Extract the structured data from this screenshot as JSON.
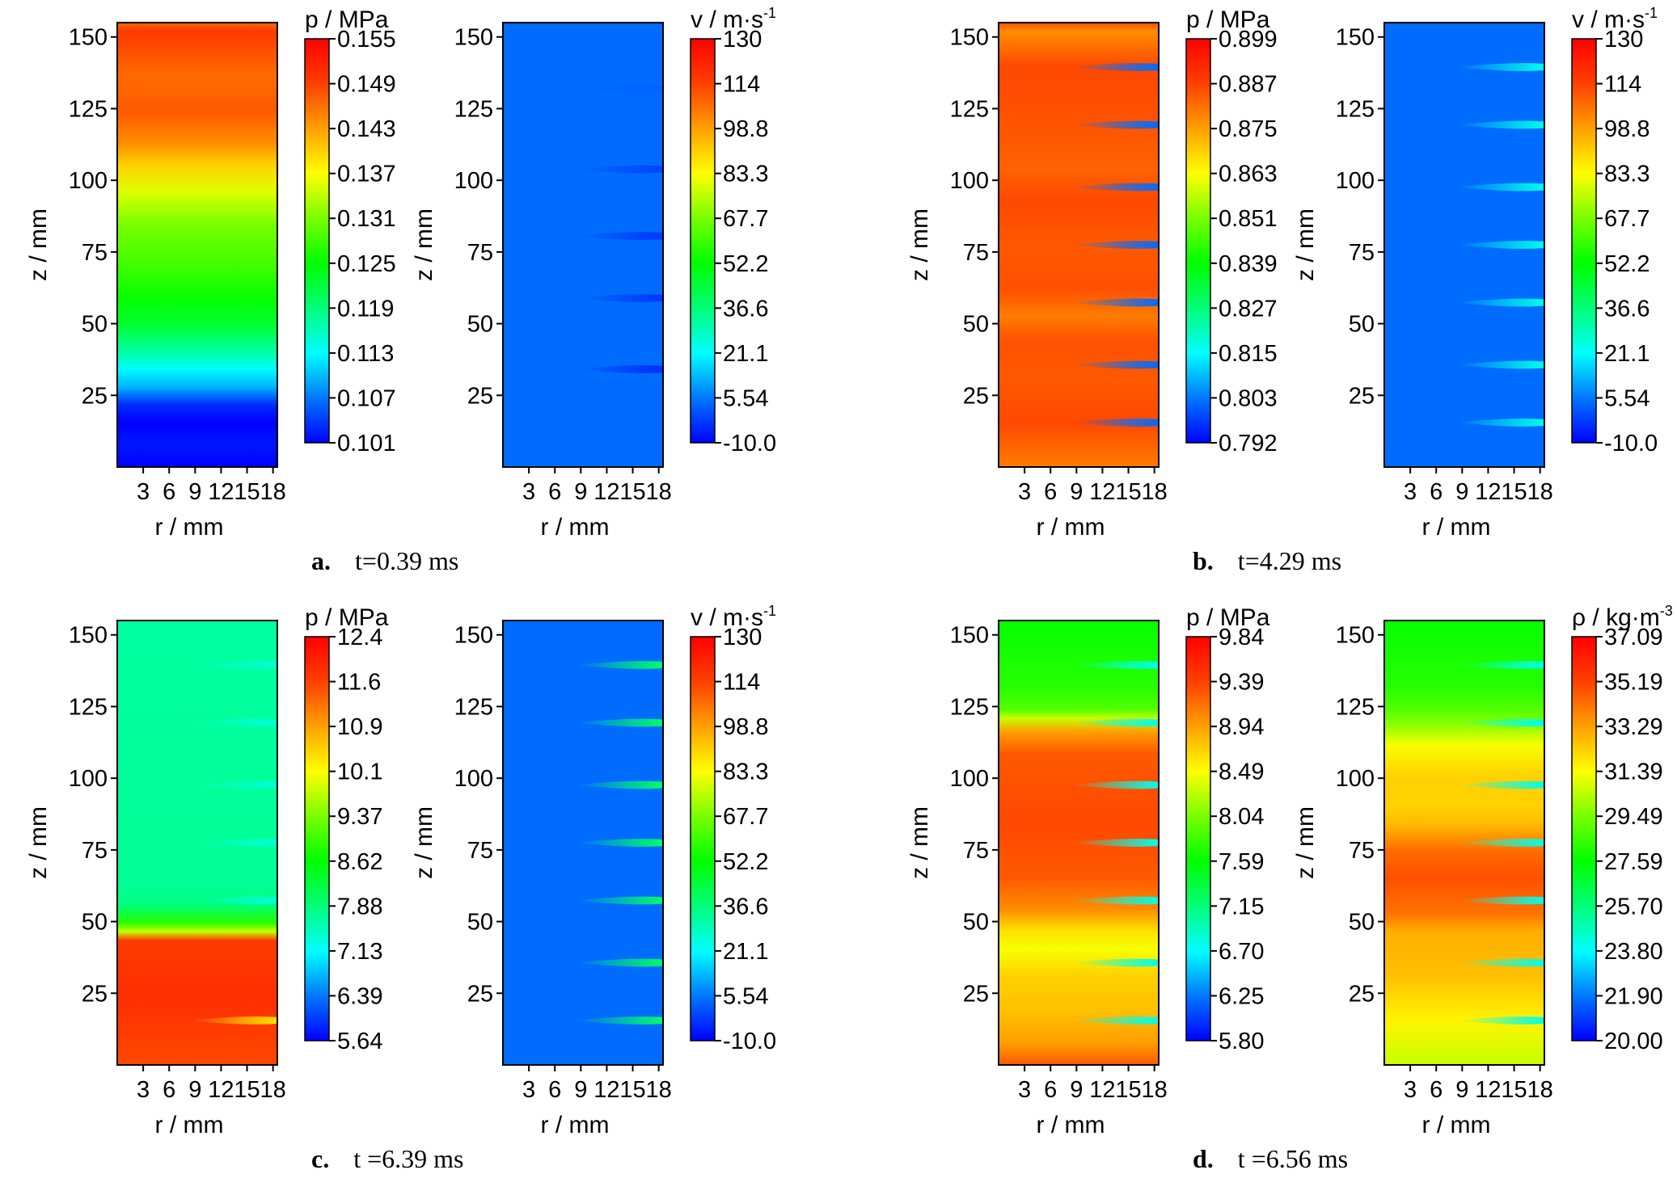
{
  "panels": [
    {
      "letter": "a.",
      "time_label": "t=0.39 ms",
      "plots": [
        {
          "field": "pressure",
          "colorbar_title": "p / MPa",
          "colorbar_ticks": [
            "0.155",
            "0.149",
            "0.143",
            "0.137",
            "0.131",
            "0.125",
            "0.119",
            "0.113",
            "0.107",
            "0.101"
          ],
          "z_ticks": [
            "150",
            "125",
            "100",
            "75",
            "50",
            "25"
          ],
          "r_ticks": [
            "3",
            "6",
            "9",
            "12",
            "15",
            "18"
          ],
          "xlabel": "r / mm",
          "ylabel": "z / mm",
          "profile": [
            [
              0,
              0.84
            ],
            [
              0.02,
              0.9
            ],
            [
              0.05,
              0.88
            ],
            [
              0.12,
              0.84
            ],
            [
              0.2,
              0.86
            ],
            [
              0.27,
              0.8
            ],
            [
              0.32,
              0.72
            ],
            [
              0.38,
              0.64
            ],
            [
              0.45,
              0.56
            ],
            [
              0.55,
              0.5
            ],
            [
              0.62,
              0.45
            ],
            [
              0.68,
              0.4
            ],
            [
              0.74,
              0.3
            ],
            [
              0.78,
              0.22
            ],
            [
              0.82,
              0.16
            ],
            [
              0.86,
              0.04
            ],
            [
              0.9,
              0.0
            ],
            [
              0.95,
              0.02
            ],
            [
              1,
              0.0
            ]
          ],
          "injections": []
        },
        {
          "field": "velocity",
          "colorbar_title": "v / m·s",
          "colorbar_title_sup": "-1",
          "colorbar_ticks": [
            "130",
            "114",
            "98.8",
            "83.3",
            "67.7",
            "52.2",
            "36.6",
            "21.1",
            "5.54",
            "-10.0"
          ],
          "z_ticks": [
            "150",
            "125",
            "100",
            "75",
            "50",
            "25"
          ],
          "r_ticks": [
            "3",
            "6",
            "9",
            "12",
            "15",
            "18"
          ],
          "xlabel": "r / mm",
          "ylabel": "z / mm",
          "profile": [
            [
              0,
              0.1
            ],
            [
              1,
              0.1
            ]
          ],
          "injections": [
            [
              0.15,
              0.09
            ],
            [
              0.33,
              0.06
            ],
            [
              0.48,
              0.05
            ],
            [
              0.62,
              0.05
            ],
            [
              0.78,
              0.04
            ]
          ]
        }
      ]
    },
    {
      "letter": "b.",
      "time_label": "t=4.29 ms",
      "plots": [
        {
          "field": "pressure",
          "colorbar_title": "p / MPa",
          "colorbar_ticks": [
            "0.899",
            "0.887",
            "0.875",
            "0.863",
            "0.851",
            "0.839",
            "0.827",
            "0.815",
            "0.803",
            "0.792"
          ],
          "z_ticks": [
            "150",
            "125",
            "100",
            "75",
            "50",
            "25"
          ],
          "r_ticks": [
            "3",
            "6",
            "9",
            "12",
            "15",
            "18"
          ],
          "xlabel": "r / mm",
          "ylabel": "z / mm",
          "profile": [
            [
              0,
              0.87
            ],
            [
              0.02,
              0.8
            ],
            [
              0.1,
              0.88
            ],
            [
              0.2,
              0.87
            ],
            [
              0.33,
              0.85
            ],
            [
              0.4,
              0.88
            ],
            [
              0.5,
              0.86
            ],
            [
              0.6,
              0.87
            ],
            [
              0.66,
              0.82
            ],
            [
              0.72,
              0.87
            ],
            [
              0.8,
              0.86
            ],
            [
              0.9,
              0.88
            ],
            [
              1,
              0.82
            ]
          ],
          "injections": [
            [
              0.1,
              0.1
            ],
            [
              0.23,
              0.1
            ],
            [
              0.37,
              0.1
            ],
            [
              0.5,
              0.1
            ],
            [
              0.63,
              0.1
            ],
            [
              0.77,
              0.1
            ],
            [
              0.9,
              0.1
            ]
          ]
        },
        {
          "field": "velocity",
          "colorbar_title": "v / m·s",
          "colorbar_title_sup": "-1",
          "colorbar_ticks": [
            "130",
            "114",
            "98.8",
            "83.3",
            "67.7",
            "52.2",
            "36.6",
            "21.1",
            "5.54",
            "-10.0"
          ],
          "z_ticks": [
            "150",
            "125",
            "100",
            "75",
            "50",
            "25"
          ],
          "r_ticks": [
            "3",
            "6",
            "9",
            "12",
            "15",
            "18"
          ],
          "xlabel": "r / mm",
          "ylabel": "z / mm",
          "profile": [
            [
              0,
              0.1
            ],
            [
              1,
              0.1
            ]
          ],
          "injections": [
            [
              0.1,
              0.24
            ],
            [
              0.23,
              0.24
            ],
            [
              0.37,
              0.24
            ],
            [
              0.5,
              0.24
            ],
            [
              0.63,
              0.24
            ],
            [
              0.77,
              0.24
            ],
            [
              0.9,
              0.24
            ]
          ]
        }
      ]
    },
    {
      "letter": "c.",
      "time_label": "t =6.39 ms",
      "plots": [
        {
          "field": "pressure",
          "colorbar_title": "p / MPa",
          "colorbar_ticks": [
            "12.4",
            "11.6",
            "10.9",
            "10.1",
            "9.37",
            "8.62",
            "7.88",
            "7.13",
            "6.39",
            "5.64"
          ],
          "z_ticks": [
            "150",
            "125",
            "100",
            "75",
            "50",
            "25"
          ],
          "r_ticks": [
            "3",
            "6",
            "9",
            "12",
            "15",
            "18"
          ],
          "xlabel": "r / mm",
          "ylabel": "z / mm",
          "profile": [
            [
              0,
              0.3
            ],
            [
              0.6,
              0.31
            ],
            [
              0.64,
              0.33
            ],
            [
              0.68,
              0.48
            ],
            [
              0.7,
              0.62
            ],
            [
              0.72,
              0.9
            ],
            [
              0.85,
              0.92
            ],
            [
              1,
              0.88
            ]
          ],
          "injections": [
            [
              0.1,
              0.26
            ],
            [
              0.23,
              0.26
            ],
            [
              0.37,
              0.26
            ],
            [
              0.5,
              0.26
            ],
            [
              0.63,
              0.26
            ],
            [
              0.9,
              0.7
            ]
          ]
        },
        {
          "field": "velocity",
          "colorbar_title": "v / m·s",
          "colorbar_title_sup": "-1",
          "colorbar_ticks": [
            "130",
            "114",
            "98.8",
            "83.3",
            "67.7",
            "52.2",
            "36.6",
            "21.1",
            "5.54",
            "-10.0"
          ],
          "z_ticks": [
            "150",
            "125",
            "100",
            "75",
            "50",
            "25"
          ],
          "r_ticks": [
            "3",
            "6",
            "9",
            "12",
            "15",
            "18"
          ],
          "xlabel": "r / mm",
          "ylabel": "z / mm",
          "profile": [
            [
              0,
              0.1
            ],
            [
              1,
              0.1
            ]
          ],
          "injections": [
            [
              0.1,
              0.35
            ],
            [
              0.23,
              0.35
            ],
            [
              0.37,
              0.35
            ],
            [
              0.5,
              0.35
            ],
            [
              0.63,
              0.35
            ],
            [
              0.77,
              0.35
            ],
            [
              0.9,
              0.35
            ]
          ]
        }
      ]
    },
    {
      "letter": "d.",
      "time_label": "t =6.56 ms",
      "plots": [
        {
          "field": "pressure",
          "colorbar_title": "p / MPa",
          "colorbar_ticks": [
            "9.84",
            "9.39",
            "8.94",
            "8.49",
            "8.04",
            "7.59",
            "7.15",
            "6.70",
            "6.25",
            "5.80"
          ],
          "z_ticks": [
            "150",
            "125",
            "100",
            "75",
            "50",
            "25"
          ],
          "r_ticks": [
            "3",
            "6",
            "9",
            "12",
            "15",
            "18"
          ],
          "xlabel": "r / mm",
          "ylabel": "z / mm",
          "profile": [
            [
              0,
              0.45
            ],
            [
              0.15,
              0.48
            ],
            [
              0.2,
              0.52
            ],
            [
              0.22,
              0.62
            ],
            [
              0.25,
              0.78
            ],
            [
              0.3,
              0.86
            ],
            [
              0.45,
              0.88
            ],
            [
              0.58,
              0.86
            ],
            [
              0.65,
              0.8
            ],
            [
              0.7,
              0.7
            ],
            [
              0.74,
              0.66
            ],
            [
              0.8,
              0.72
            ],
            [
              0.88,
              0.74
            ],
            [
              0.95,
              0.78
            ],
            [
              1,
              0.86
            ]
          ],
          "injections": [
            [
              0.1,
              0.24
            ],
            [
              0.23,
              0.24
            ],
            [
              0.37,
              0.24
            ],
            [
              0.5,
              0.24
            ],
            [
              0.63,
              0.24
            ],
            [
              0.77,
              0.24
            ],
            [
              0.9,
              0.24
            ]
          ]
        },
        {
          "field": "density",
          "colorbar_title": "ρ / kg·m",
          "colorbar_title_sup": "-3",
          "colorbar_ticks": [
            "37.09",
            "35.19",
            "33.29",
            "31.39",
            "29.49",
            "27.59",
            "25.70",
            "23.80",
            "21.90",
            "20.00"
          ],
          "z_ticks": [
            "150",
            "125",
            "100",
            "75",
            "50",
            "25"
          ],
          "r_ticks": [
            "3",
            "6",
            "9",
            "12",
            "15",
            "18"
          ],
          "xlabel": "r / mm",
          "ylabel": "z / mm",
          "profile": [
            [
              0,
              0.45
            ],
            [
              0.15,
              0.48
            ],
            [
              0.2,
              0.52
            ],
            [
              0.24,
              0.58
            ],
            [
              0.28,
              0.66
            ],
            [
              0.35,
              0.72
            ],
            [
              0.42,
              0.72
            ],
            [
              0.46,
              0.75
            ],
            [
              0.52,
              0.84
            ],
            [
              0.58,
              0.87
            ],
            [
              0.66,
              0.83
            ],
            [
              0.7,
              0.76
            ],
            [
              0.8,
              0.74
            ],
            [
              0.9,
              0.68
            ],
            [
              1,
              0.62
            ]
          ],
          "injections": [
            [
              0.1,
              0.24
            ],
            [
              0.23,
              0.24
            ],
            [
              0.37,
              0.24
            ],
            [
              0.5,
              0.24
            ],
            [
              0.63,
              0.24
            ],
            [
              0.77,
              0.24
            ],
            [
              0.9,
              0.24
            ]
          ]
        }
      ]
    }
  ],
  "colormap": [
    "#0000ff",
    "#0078ff",
    "#00ffff",
    "#00ff78",
    "#00ff00",
    "#78ff00",
    "#ffff00",
    "#ffa000",
    "#ff4000",
    "#ff0000"
  ]
}
